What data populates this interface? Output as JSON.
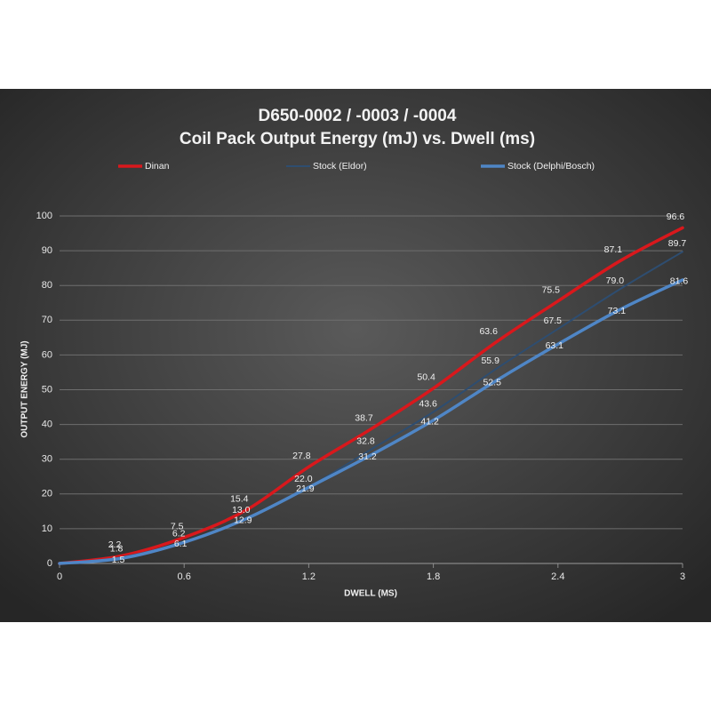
{
  "chart_data": {
    "type": "line",
    "title": "D650-0002 / -0003 / -0004",
    "subtitle": "Coil Pack Output Energy (mJ) vs. Dwell (ms)",
    "x_label": "DWELL (MS)",
    "y_label": "OUTPUT ENERGY (MJ)",
    "x": [
      0,
      0.3,
      0.6,
      0.9,
      1.2,
      1.5,
      1.8,
      2.1,
      2.4,
      2.7,
      3
    ],
    "series": [
      {
        "name": "Dinan",
        "color": "#d9181c",
        "width": 3.5,
        "values": [
          0,
          2.2,
          7.5,
          15.4,
          27.8,
          38.7,
          50.4,
          63.6,
          75.5,
          87.1,
          96.6
        ],
        "value_labels": [
          null,
          "2.2",
          "7.5",
          "15.4",
          "27.8",
          "38.7",
          "50.4",
          "63.6",
          "75.5",
          "87.1",
          "96.6"
        ]
      },
      {
        "name": "Stock (Eldor)",
        "color": "#2e4d70",
        "width": 2,
        "values": [
          0,
          1.8,
          6.2,
          13.0,
          22.0,
          32.8,
          43.6,
          55.9,
          67.5,
          79.0,
          89.7
        ],
        "value_labels": [
          null,
          "1.8",
          "6.2",
          "13.0",
          "22.0",
          "32.8",
          "43.6",
          "55.9",
          "67.5",
          "79.0",
          "89.7"
        ]
      },
      {
        "name": "Stock (Delphi/Bosch)",
        "color": "#4f86c6",
        "width": 3.5,
        "values": [
          0,
          1.5,
          6.1,
          12.9,
          21.9,
          31.2,
          41.2,
          52.5,
          63.1,
          73.1,
          81.6
        ],
        "value_labels": [
          null,
          "1.5",
          "6.1",
          "12.9",
          "21.9",
          "31.2",
          "41.2",
          "52.5",
          "63.1",
          "73.1",
          "81.6"
        ]
      }
    ],
    "xlim": [
      0,
      3
    ],
    "xticks": [
      0,
      0.6,
      1.2,
      1.8,
      2.4,
      3
    ],
    "ylim": [
      0,
      100
    ],
    "yticks": [
      0,
      10,
      20,
      30,
      40,
      50,
      60,
      70,
      80,
      90,
      100
    ],
    "grid": true,
    "legend": "top"
  }
}
